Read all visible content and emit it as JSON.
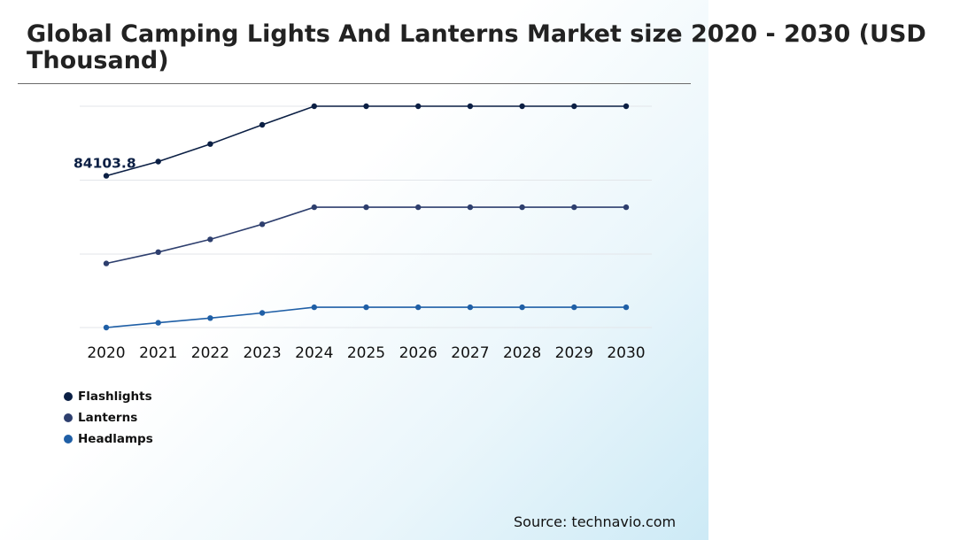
{
  "title": "Global Camping Lights And Lanterns Market size 2020 - 2030 (USD Thousand)",
  "source": "Source: technavio.com",
  "colors": {
    "flashlights": "#0b1f44",
    "lanterns": "#2e3f6e",
    "headlamps": "#1f5fa6",
    "grid": "#e3e6ea",
    "title_rule": "#6b6b6b"
  },
  "chart_data": {
    "type": "line",
    "title": "Global Camping Lights And Lanterns Market size 2020 - 2030 (USD Thousand)",
    "x": [
      "2020",
      "2021",
      "2022",
      "2023",
      "2024",
      "2025",
      "2026",
      "2027",
      "2028",
      "2029",
      "2030"
    ],
    "ylim": [
      0,
      150000
    ],
    "grid": true,
    "legend_position": "bottom-left",
    "series": [
      {
        "name": "Flashlights",
        "color": "#0b1f44",
        "values": [
          84103.8,
          91900,
          101500,
          112000,
          122200,
          122200,
          122200,
          122200,
          122200,
          122200,
          122200
        ]
      },
      {
        "name": "Lanterns",
        "color": "#2e3f6e",
        "values": [
          36100,
          42300,
          49300,
          57600,
          66900,
          66900,
          66900,
          66900,
          66900,
          66900,
          66900
        ]
      },
      {
        "name": "Headlamps",
        "color": "#1f5fa6",
        "values": [
          1000,
          3600,
          6200,
          9000,
          12100,
          12100,
          12100,
          12100,
          12100,
          12100,
          12100
        ]
      }
    ],
    "annotations": [
      {
        "series": "Flashlights",
        "x": "2020",
        "label": "84103.8"
      }
    ]
  }
}
